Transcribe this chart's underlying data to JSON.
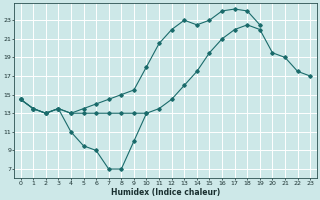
{
  "xlabel": "Humidex (Indice chaleur)",
  "bg_color": "#cde8e8",
  "grid_color": "#ffffff",
  "line_color": "#1a6b6b",
  "xlim": [
    -0.5,
    23.5
  ],
  "ylim": [
    6.0,
    24.8
  ],
  "xticks": [
    0,
    1,
    2,
    3,
    4,
    5,
    6,
    7,
    8,
    9,
    10,
    11,
    12,
    13,
    14,
    15,
    16,
    17,
    18,
    19,
    20,
    21,
    22,
    23
  ],
  "yticks": [
    7,
    9,
    11,
    13,
    15,
    17,
    19,
    21,
    23
  ],
  "line1_y": [
    14.5,
    13.5,
    13.0,
    13.5,
    11.0,
    9.5,
    9.0,
    7.0,
    7.0,
    10.0,
    13.0,
    null,
    null,
    null,
    null,
    null,
    null,
    null,
    null,
    null,
    null,
    null,
    null,
    null
  ],
  "line2_y": [
    14.5,
    13.5,
    13.0,
    13.5,
    13.0,
    13.0,
    13.0,
    13.0,
    13.0,
    13.0,
    13.0,
    13.5,
    14.5,
    16.0,
    17.5,
    19.5,
    21.0,
    22.0,
    22.5,
    22.0,
    19.5,
    19.0,
    17.5,
    17.0
  ],
  "line3_y": [
    14.5,
    13.5,
    13.0,
    13.5,
    13.0,
    13.5,
    14.0,
    14.5,
    15.0,
    15.5,
    18.0,
    20.5,
    22.0,
    23.0,
    22.5,
    23.0,
    24.0,
    24.2,
    24.0,
    22.5,
    null,
    null,
    null,
    null
  ]
}
